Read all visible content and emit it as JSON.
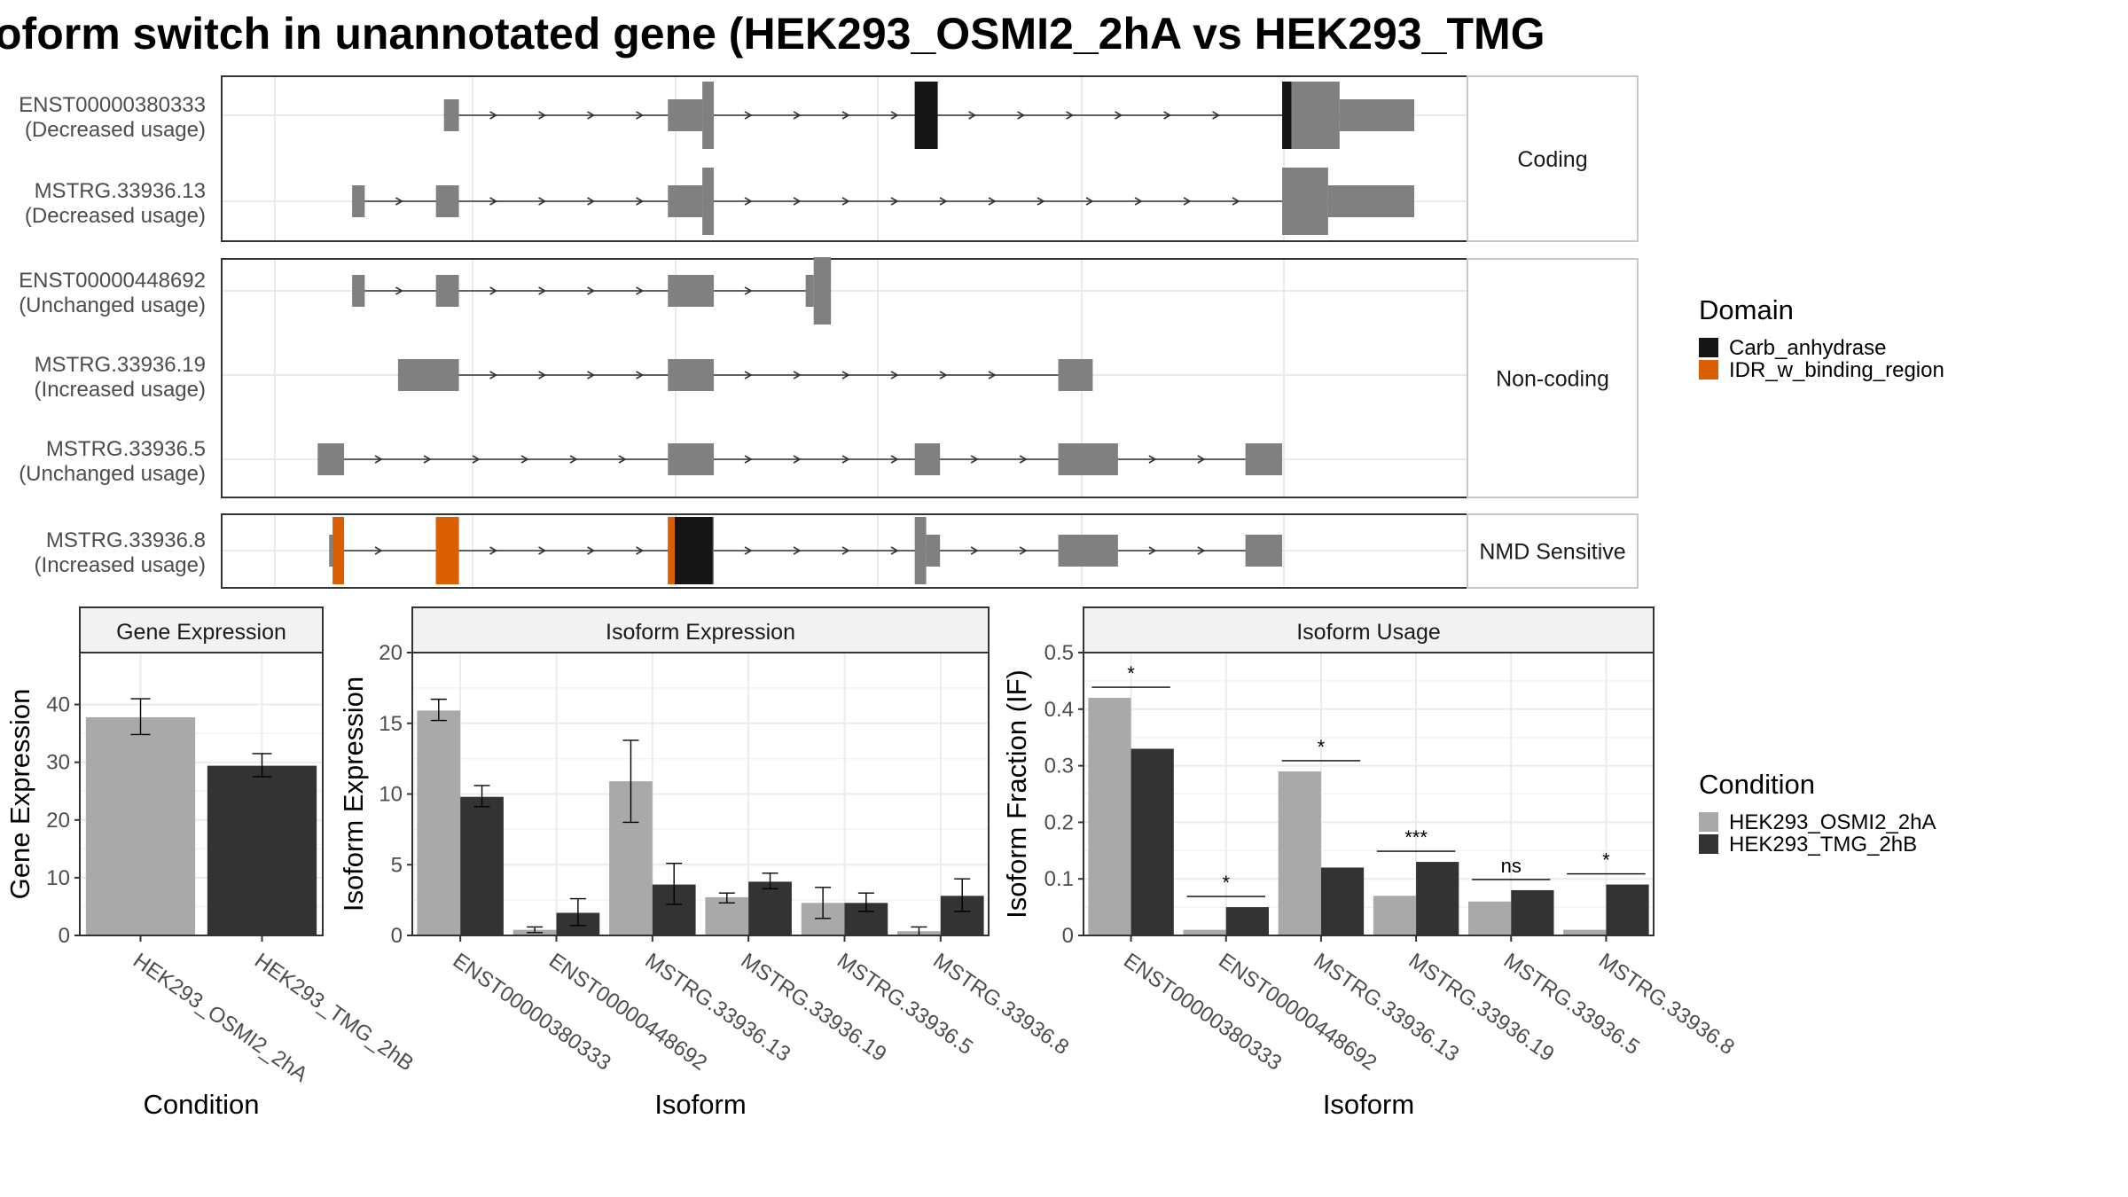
{
  "title": "oform switch in unannotated gene (HEK293_OSMI2_2hA vs HEK293_TMG",
  "colors": {
    "exon": "#808080",
    "carb": "#161616",
    "idr": "#d95f02",
    "cond1": "#a9a9a9",
    "cond2": "#333333",
    "grid": "#ebebeb",
    "strip": "#f2f2f2"
  },
  "legend_domain": {
    "title": "Domain",
    "items": [
      {
        "label": "Carb_anhydrase",
        "color": "#161616"
      },
      {
        "label": "IDR_w_binding_region",
        "color": "#d95f02"
      }
    ]
  },
  "legend_condition": {
    "title": "Condition",
    "items": [
      {
        "label": "HEK293_OSMI2_2hA",
        "color": "#a9a9a9"
      },
      {
        "label": "HEK293_TMG_2hB",
        "color": "#333333"
      }
    ]
  },
  "chart_data": [
    {
      "type": "gene-structure",
      "genomic_range": [
        0,
        100
      ],
      "facets": [
        {
          "label": "Coding",
          "transcripts": [
            {
              "name": "ENST00000380333",
              "usage": "(Decreased usage)",
              "exons": [
                [
                  15.5,
                  16.8,
                  "s"
                ],
                [
                  35,
                  38,
                  "t"
                ],
                [
                  38,
                  39,
                  "T"
                ],
                [
                  56.5,
                  58.5,
                  "T"
                ],
                [
                  88.5,
                  89.3,
                  "T"
                ],
                [
                  89.3,
                  93.5,
                  "T"
                ],
                [
                  93.5,
                  100,
                  "t"
                ]
              ],
              "domains": [
                [
                  56.5,
                  58.5,
                  "carb"
                ],
                [
                  88.5,
                  89.3,
                  "carb"
                ]
              ]
            },
            {
              "name": "MSTRG.33936.13",
              "usage": "(Decreased usage)",
              "exons": [
                [
                  7.5,
                  8.6,
                  "s"
                ],
                [
                  14.8,
                  16.8,
                  "s"
                ],
                [
                  35,
                  38,
                  "t"
                ],
                [
                  38,
                  39,
                  "T"
                ],
                [
                  88.5,
                  92.5,
                  "T"
                ],
                [
                  92.5,
                  100,
                  "t"
                ]
              ],
              "domains": []
            }
          ]
        },
        {
          "label": "Non-coding",
          "transcripts": [
            {
              "name": "ENST00000448692",
              "usage": "(Unchanged usage)",
              "exons": [
                [
                  7.5,
                  8.6,
                  "s"
                ],
                [
                  14.8,
                  16.8,
                  "s"
                ],
                [
                  35,
                  39,
                  "s"
                ],
                [
                  47,
                  47.7,
                  "s"
                ],
                [
                  47.7,
                  49.2,
                  "T"
                ]
              ],
              "domains": []
            },
            {
              "name": "MSTRG.33936.19",
              "usage": "(Increased usage)",
              "exons": [
                [
                  11.5,
                  16.8,
                  "s"
                ],
                [
                  35,
                  39,
                  "s"
                ],
                [
                  69,
                  72,
                  "s"
                ]
              ],
              "domains": []
            },
            {
              "name": "MSTRG.33936.5",
              "usage": "(Unchanged usage)",
              "exons": [
                [
                  4.5,
                  6.8,
                  "s"
                ],
                [
                  35,
                  39,
                  "s"
                ],
                [
                  56.5,
                  58.7,
                  "s"
                ],
                [
                  69,
                  74.2,
                  "s"
                ],
                [
                  85.3,
                  88.5,
                  "s"
                ]
              ],
              "domains": []
            }
          ]
        },
        {
          "label": "NMD Sensitive",
          "transcripts": [
            {
              "name": "MSTRG.33936.8",
              "usage": "(Increased usage)",
              "exons": [
                [
                  5.5,
                  6.8,
                  "t"
                ],
                [
                  14.8,
                  16.8,
                  "T"
                ],
                [
                  35,
                  39,
                  "T"
                ],
                [
                  56.5,
                  57.5,
                  "T"
                ],
                [
                  57.5,
                  58.7,
                  "s"
                ],
                [
                  69,
                  74.2,
                  "s"
                ],
                [
                  85.3,
                  88.5,
                  "s"
                ]
              ],
              "domains": [
                [
                  5.8,
                  6.8,
                  "idr"
                ],
                [
                  14.8,
                  16.8,
                  "idr"
                ],
                [
                  35,
                  35.6,
                  "idr"
                ],
                [
                  35.6,
                  38.9,
                  "carb"
                ]
              ]
            }
          ]
        }
      ]
    },
    {
      "type": "bar",
      "title": "Gene Expression",
      "xlabel": "Condition",
      "ylabel": "Gene Expression",
      "ylim": [
        0,
        49
      ],
      "yticks": [
        0,
        10,
        20,
        30,
        40
      ],
      "categories": [
        "HEK293_OSMI2_2hA",
        "HEK293_TMG_2hB"
      ],
      "values": [
        37.8,
        29.4
      ],
      "err_low": [
        34.8,
        27.5
      ],
      "err_high": [
        41.0,
        31.5
      ]
    },
    {
      "type": "bar",
      "title": "Isoform Expression",
      "xlabel": "Isoform",
      "ylabel": "Isoform Expression",
      "ylim": [
        0,
        20
      ],
      "yticks": [
        0,
        5,
        10,
        15,
        20
      ],
      "categories": [
        "ENST00000380333",
        "ENST00000448692",
        "MSTRG.33936.13",
        "MSTRG.33936.19",
        "MSTRG.33936.5",
        "MSTRG.33936.8"
      ],
      "series": [
        {
          "name": "HEK293_OSMI2_2hA",
          "values": [
            15.9,
            0.4,
            10.9,
            2.7,
            2.3,
            0.3
          ],
          "err_low": [
            15.2,
            0.2,
            8.0,
            2.3,
            1.2,
            0.0
          ],
          "err_high": [
            16.7,
            0.6,
            13.8,
            3.0,
            3.4,
            0.6
          ]
        },
        {
          "name": "HEK293_TMG_2hB",
          "values": [
            9.8,
            1.6,
            3.6,
            3.8,
            2.3,
            2.8
          ],
          "err_low": [
            9.1,
            0.7,
            2.2,
            3.3,
            1.7,
            1.7
          ],
          "err_high": [
            10.6,
            2.6,
            5.1,
            4.4,
            3.0,
            4.0
          ]
        }
      ]
    },
    {
      "type": "bar",
      "title": "Isoform Usage",
      "xlabel": "Isoform",
      "ylabel": "Isoform Fraction (IF)",
      "ylim": [
        0,
        0.5
      ],
      "yticks": [
        0.0,
        0.1,
        0.2,
        0.3,
        0.4,
        0.5
      ],
      "categories": [
        "ENST00000380333",
        "ENST00000448692",
        "MSTRG.33936.13",
        "MSTRG.33936.19",
        "MSTRG.33936.5",
        "MSTRG.33936.8"
      ],
      "series": [
        {
          "name": "HEK293_OSMI2_2hA",
          "values": [
            0.42,
            0.01,
            0.29,
            0.07,
            0.06,
            0.01
          ]
        },
        {
          "name": "HEK293_TMG_2hB",
          "values": [
            0.33,
            0.05,
            0.12,
            0.13,
            0.08,
            0.09
          ]
        }
      ],
      "significance": [
        "*",
        "*",
        "*",
        "***",
        "ns",
        "*"
      ]
    }
  ]
}
